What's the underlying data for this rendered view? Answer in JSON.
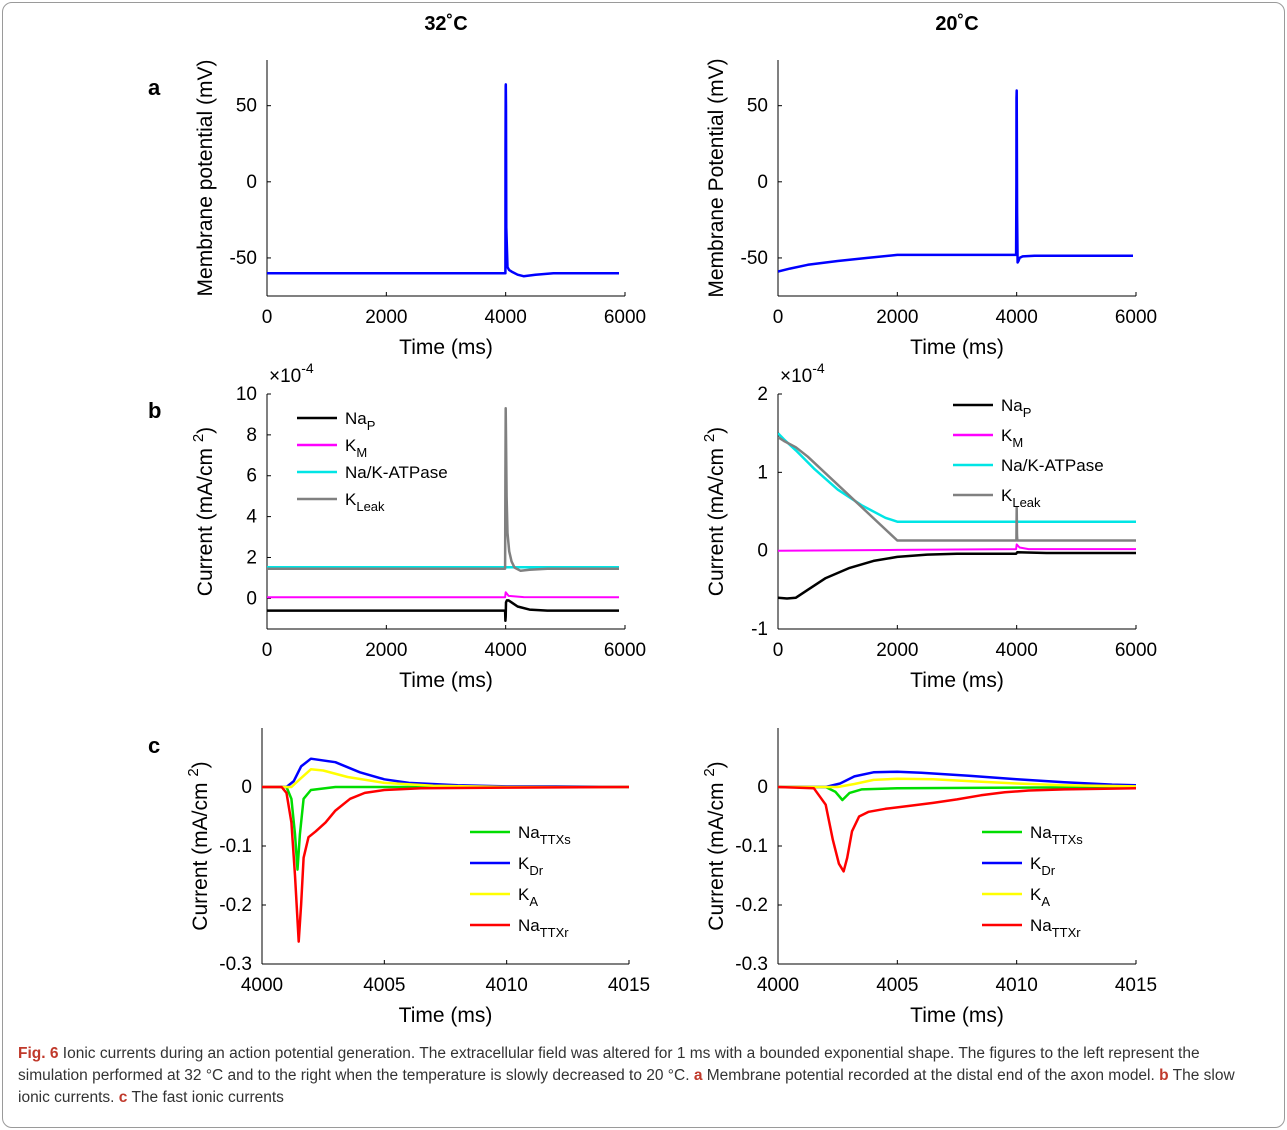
{
  "column_titles": [
    "32˚C",
    "20˚C"
  ],
  "panel_letters": [
    "a",
    "b",
    "c"
  ],
  "x_label": "Time (ms)",
  "caption": {
    "fig_label": "Fig. 6",
    "text1": "Ionic currents during an action potential generation. The extracellular field was altered for 1 ms with a bounded exponential shape. The figures to the left represent the simulation performed at 32 °C and to the right when the temperature is slowly decreased to 20 °C.",
    "a_label": "a",
    "a_text": "Membrane potential recorded at the distal end of the axon model.",
    "b_label": "b",
    "b_text": "The slow ionic currents.",
    "c_label": "c",
    "c_text": "The fast ionic currents"
  },
  "colors": {
    "NaP": "#000000",
    "KM": "#ff00ff",
    "NaK_ATPase": "#00e5e5",
    "KLeak": "#808080",
    "NaTTXs": "#00dd00",
    "KDr": "#0000ff",
    "KA": "#ffff00",
    "NaTTXr": "#ff0000",
    "Vm": "#0000ff"
  },
  "chart_data": [
    {
      "id": "a-left",
      "type": "line",
      "ylabel": "Membrane potential (mV)",
      "xlabel": "Time (ms)",
      "xlim": [
        0,
        6000
      ],
      "ylim": [
        -75,
        80
      ],
      "xticks": [
        0,
        2000,
        4000,
        6000
      ],
      "yticks": [
        -50,
        0,
        50
      ],
      "series": [
        {
          "color": "#0000ff",
          "width": 2.5,
          "x": [
            0,
            2000,
            3990,
            3995,
            3998,
            4000,
            4002,
            4005,
            4010,
            4030,
            4060,
            4100,
            4200,
            4300,
            4500,
            4800,
            5200,
            5900
          ],
          "y": [
            -60,
            -60,
            -60,
            -60,
            20,
            63,
            64,
            50,
            -30,
            -56,
            -58,
            -59,
            -61,
            -62,
            -61,
            -60,
            -60,
            -60
          ]
        }
      ]
    },
    {
      "id": "a-right",
      "type": "line",
      "ylabel": "Membrane Potential (mV)",
      "xlabel": "Time (ms)",
      "xlim": [
        0,
        6000
      ],
      "ylim": [
        -75,
        80
      ],
      "xticks": [
        0,
        2000,
        4000,
        6000
      ],
      "yticks": [
        -50,
        0,
        50
      ],
      "series": [
        {
          "color": "#0000ff",
          "width": 2.5,
          "x": [
            0,
            200,
            500,
            1000,
            1500,
            2000,
            3000,
            3990,
            3995,
            3998,
            4000,
            4003,
            4008,
            4015,
            4030,
            4050,
            4100,
            4300,
            5000,
            5950
          ],
          "y": [
            -59,
            -57,
            -54.5,
            -52,
            -50,
            -48,
            -48,
            -48,
            0,
            55,
            60,
            40,
            -20,
            -53,
            -52,
            -50,
            -49,
            -48.5,
            -48.5,
            -48.5
          ]
        }
      ]
    },
    {
      "id": "b-left",
      "type": "line",
      "ylabel": "Current (mA/cm 2)",
      "xlabel": "Time (ms)",
      "exponent": "×10-4",
      "xlim": [
        0,
        6000
      ],
      "ylim": [
        -1.5,
        10
      ],
      "xticks": [
        0,
        2000,
        4000,
        6000
      ],
      "yticks": [
        0,
        2,
        4,
        6,
        8,
        10
      ],
      "legend": {
        "position": "top-left",
        "entries": [
          "NaP",
          "KM",
          "Na/K-ATPase",
          "KLeak"
        ]
      },
      "series": [
        {
          "name": "NaP",
          "color": "#000000",
          "width": 2.5,
          "x": [
            0,
            3990,
            3995,
            4000,
            4005,
            4020,
            4050,
            4100,
            4200,
            4400,
            4700,
            5900
          ],
          "y": [
            -0.6,
            -0.6,
            -1.1,
            -0.9,
            -0.2,
            -0.1,
            -0.1,
            -0.2,
            -0.4,
            -0.55,
            -0.6,
            -0.6
          ]
        },
        {
          "name": "KM",
          "color": "#ff00ff",
          "width": 2,
          "x": [
            0,
            3990,
            4000,
            4050,
            4300,
            5900
          ],
          "y": [
            0.05,
            0.05,
            0.3,
            0.12,
            0.06,
            0.05
          ]
        },
        {
          "name": "Na/K-ATPase",
          "color": "#00e5e5",
          "width": 2.5,
          "x": [
            0,
            5900
          ],
          "y": [
            1.52,
            1.52
          ]
        },
        {
          "name": "KLeak",
          "color": "#808080",
          "width": 2.5,
          "x": [
            0,
            3990,
            3996,
            4000,
            4005,
            4015,
            4030,
            4060,
            4100,
            4150,
            4250,
            4400,
            4700,
            5100,
            5900
          ],
          "y": [
            1.45,
            1.45,
            6,
            9.3,
            8,
            5,
            3.2,
            2.3,
            1.8,
            1.5,
            1.35,
            1.4,
            1.45,
            1.45,
            1.45
          ]
        }
      ]
    },
    {
      "id": "b-right",
      "type": "line",
      "ylabel": "Current (mA/cm 2)",
      "xlabel": "Time (ms)",
      "exponent": "×10-4",
      "xlim": [
        0,
        6000
      ],
      "ylim": [
        -1,
        2
      ],
      "xticks": [
        0,
        2000,
        4000,
        6000
      ],
      "yticks": [
        -1,
        0,
        1,
        2
      ],
      "legend": {
        "position": "top-right",
        "entries": [
          "NaP",
          "KM",
          "Na/K-ATPase",
          "KLeak"
        ]
      },
      "series": [
        {
          "name": "NaP",
          "color": "#000000",
          "width": 2.5,
          "x": [
            0,
            150,
            300,
            500,
            800,
            1200,
            1600,
            2000,
            2500,
            3000,
            3990,
            4010,
            4500,
            6000
          ],
          "y": [
            -0.6,
            -0.61,
            -0.6,
            -0.5,
            -0.35,
            -0.22,
            -0.13,
            -0.08,
            -0.05,
            -0.04,
            -0.04,
            -0.02,
            -0.03,
            -0.03
          ]
        },
        {
          "name": "KM",
          "color": "#ff00ff",
          "width": 2,
          "x": [
            0,
            2000,
            3990,
            4000,
            4050,
            4200,
            6000
          ],
          "y": [
            0.0,
            0.01,
            0.02,
            0.08,
            0.04,
            0.02,
            0.02
          ]
        },
        {
          "name": "Na/K-ATPase",
          "color": "#00e5e5",
          "width": 2.5,
          "x": [
            0,
            100,
            300,
            600,
            1000,
            1400,
            1800,
            2000,
            3000,
            6000
          ],
          "y": [
            1.5,
            1.42,
            1.28,
            1.05,
            0.78,
            0.58,
            0.42,
            0.37,
            0.37,
            0.37
          ]
        },
        {
          "name": "KLeak",
          "color": "#808080",
          "width": 2.5,
          "x": [
            0,
            100,
            300,
            500,
            2000,
            3995,
            4000,
            4005,
            4010,
            4050,
            6000
          ],
          "y": [
            1.45,
            1.4,
            1.32,
            1.2,
            0.13,
            0.13,
            0.55,
            0.2,
            0.13,
            0.13,
            0.13
          ]
        }
      ]
    },
    {
      "id": "c-left",
      "type": "line",
      "ylabel": "Current (mA/cm 2)",
      "xlabel": "Time (ms)",
      "xlim": [
        4000,
        4015
      ],
      "ylim": [
        -0.3,
        0.1
      ],
      "xticks": [
        4000,
        4005,
        4010,
        4015
      ],
      "yticks": [
        -0.3,
        -0.2,
        -0.1,
        0
      ],
      "legend": {
        "position": "bottom-right",
        "entries": [
          "NaTTXs",
          "KDr",
          "KA",
          "NaTTXr"
        ]
      },
      "series": [
        {
          "name": "NaTTXs",
          "color": "#00dd00",
          "width": 2.5,
          "x": [
            4000,
            4001.0,
            4001.2,
            4001.35,
            4001.45,
            4001.55,
            4001.7,
            4002.0,
            4003,
            4015
          ],
          "y": [
            0,
            0,
            -0.02,
            -0.08,
            -0.14,
            -0.08,
            -0.02,
            -0.005,
            0,
            0
          ]
        },
        {
          "name": "KDr",
          "color": "#0000ff",
          "width": 2.5,
          "x": [
            4000,
            4001.0,
            4001.3,
            4001.6,
            4002.0,
            4003,
            4004,
            4005,
            4006,
            4008,
            4010,
            4012,
            4015
          ],
          "y": [
            0,
            0,
            0.01,
            0.035,
            0.048,
            0.042,
            0.025,
            0.013,
            0.007,
            0.003,
            0.001,
            0.001,
            0
          ]
        },
        {
          "name": "KA",
          "color": "#ffff00",
          "width": 2.5,
          "x": [
            4000,
            4001.2,
            4001.6,
            4002.0,
            4002.5,
            4003.5,
            4005,
            4007,
            4010,
            4015
          ],
          "y": [
            0,
            0,
            0.015,
            0.03,
            0.028,
            0.017,
            0.007,
            0.002,
            0,
            0
          ]
        },
        {
          "name": "NaTTXr",
          "color": "#ff0000",
          "width": 2.5,
          "x": [
            4000,
            4000.8,
            4001.0,
            4001.2,
            4001.35,
            4001.5,
            4001.6,
            4001.7,
            4001.9,
            4002.2,
            4002.6,
            4003.0,
            4003.6,
            4004.2,
            4005,
            4006.5,
            4010,
            4015
          ],
          "y": [
            0,
            0,
            -0.01,
            -0.06,
            -0.15,
            -0.262,
            -0.2,
            -0.12,
            -0.085,
            -0.075,
            -0.06,
            -0.04,
            -0.02,
            -0.01,
            -0.005,
            -0.002,
            -0.001,
            0
          ]
        }
      ]
    },
    {
      "id": "c-right",
      "type": "line",
      "ylabel": "Current (mA/cm 2)",
      "xlabel": "Time (ms)",
      "xlim": [
        4000,
        4015
      ],
      "ylim": [
        -0.3,
        0.1
      ],
      "xticks": [
        4000,
        4005,
        4010,
        4015
      ],
      "yticks": [
        -0.3,
        -0.2,
        -0.1,
        0
      ],
      "legend": {
        "position": "bottom-right",
        "entries": [
          "NaTTXs",
          "KDr",
          "KA",
          "NaTTXr"
        ]
      },
      "series": [
        {
          "name": "NaTTXs",
          "color": "#00dd00",
          "width": 2.5,
          "x": [
            4000,
            4002.0,
            4002.4,
            4002.7,
            4003.0,
            4003.5,
            4005,
            4015
          ],
          "y": [
            0,
            0,
            -0.008,
            -0.022,
            -0.01,
            -0.004,
            -0.002,
            0
          ]
        },
        {
          "name": "KDr",
          "color": "#0000ff",
          "width": 2.5,
          "x": [
            4000,
            4002.0,
            4002.6,
            4003.2,
            4004,
            4005,
            4006,
            4008,
            4010,
            4012,
            4014,
            4015
          ],
          "y": [
            0,
            0,
            0.006,
            0.018,
            0.025,
            0.026,
            0.024,
            0.019,
            0.013,
            0.008,
            0.004,
            0.003
          ]
        },
        {
          "name": "KA",
          "color": "#ffff00",
          "width": 2.5,
          "x": [
            4000,
            4002.5,
            4003.2,
            4004,
            4005,
            4006.5,
            4008,
            4010,
            4012,
            4015
          ],
          "y": [
            0,
            0,
            0.005,
            0.012,
            0.014,
            0.013,
            0.01,
            0.006,
            0.003,
            0.001
          ]
        },
        {
          "name": "NaTTXr",
          "color": "#ff0000",
          "width": 2.5,
          "x": [
            4000,
            4001.5,
            4002.0,
            4002.3,
            4002.55,
            4002.75,
            4002.9,
            4003.1,
            4003.4,
            4003.8,
            4004.5,
            4005.5,
            4006.5,
            4007.5,
            4008.5,
            4009.5,
            4010.5,
            4012,
            4015
          ],
          "y": [
            0,
            -0.002,
            -0.03,
            -0.09,
            -0.13,
            -0.143,
            -0.12,
            -0.075,
            -0.05,
            -0.042,
            -0.037,
            -0.032,
            -0.027,
            -0.021,
            -0.014,
            -0.009,
            -0.006,
            -0.004,
            -0.002
          ]
        }
      ]
    }
  ],
  "legend_labels": {
    "NaP": {
      "main": "Na",
      "sub": "P"
    },
    "KM": {
      "main": "K",
      "sub": "M"
    },
    "NaK_ATPase": {
      "main": "Na/K-ATPase",
      "sub": ""
    },
    "KLeak": {
      "main": "K",
      "sub": "Leak"
    },
    "NaTTXs": {
      "main": "Na",
      "sub": "TTXs"
    },
    "KDr": {
      "main": "K",
      "sub": "Dr"
    },
    "KA": {
      "main": "K",
      "sub": "A"
    },
    "NaTTXr": {
      "main": "Na",
      "sub": "TTXr"
    }
  }
}
